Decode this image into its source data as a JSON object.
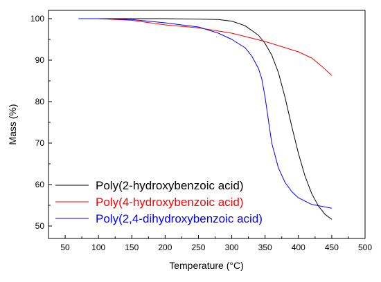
{
  "chart_data": {
    "type": "line",
    "title": "",
    "xlabel": "Temperature (°C)",
    "ylabel": "Mass (%)",
    "xlim": [
      25,
      500
    ],
    "ylim": [
      47,
      102
    ],
    "x_ticks": [
      50,
      100,
      150,
      200,
      250,
      300,
      350,
      400,
      450,
      500
    ],
    "y_ticks": [
      50,
      60,
      70,
      80,
      90,
      100
    ],
    "grid": false,
    "legend_position": "bottom-left",
    "series": [
      {
        "name": "Poly(2-hydroxybenzoic acid)",
        "color": "#000000",
        "x": [
          70,
          100,
          150,
          200,
          250,
          280,
          300,
          320,
          340,
          350,
          360,
          370,
          380,
          390,
          400,
          410,
          420,
          430,
          440,
          450
        ],
        "y": [
          100.0,
          100.0,
          100.0,
          100.0,
          99.9,
          99.8,
          99.4,
          98.3,
          96.0,
          94.0,
          91.2,
          87.0,
          81.0,
          74.0,
          67.5,
          62.0,
          57.8,
          54.8,
          52.8,
          51.6
        ]
      },
      {
        "name": "Poly(4-hydroxybenzoic acid)",
        "color": "#ff0000",
        "x": [
          70,
          100,
          150,
          200,
          250,
          300,
          350,
          400,
          420,
          430,
          440,
          450
        ],
        "y": [
          100.0,
          100.0,
          99.6,
          98.5,
          97.8,
          96.5,
          94.5,
          92.0,
          90.5,
          89.2,
          87.8,
          86.3
        ]
      },
      {
        "name": "Poly(2,4-dihydroxybenzoic acid)",
        "color": "#0000ff",
        "x": [
          70,
          100,
          150,
          200,
          250,
          280,
          300,
          320,
          330,
          340,
          345,
          350,
          355,
          360,
          370,
          380,
          390,
          400,
          420,
          450
        ],
        "y": [
          100.0,
          100.0,
          99.8,
          99.0,
          98.0,
          96.5,
          95.0,
          93.0,
          91.0,
          88.0,
          85.5,
          81.0,
          75.5,
          70.0,
          64.0,
          60.5,
          58.3,
          56.8,
          55.2,
          54.3
        ]
      }
    ]
  }
}
